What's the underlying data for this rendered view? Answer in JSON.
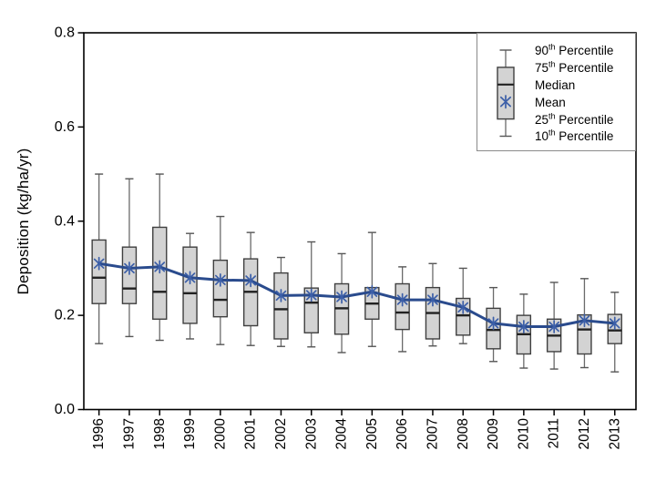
{
  "figure": {
    "background": "#ffffff",
    "y_axis_title": "Deposition (kg/ha/yr)"
  },
  "legend": {
    "items": [
      {
        "num": "90",
        "sup": "th",
        "rest": " Percentile"
      },
      {
        "num": "75",
        "sup": "th",
        "rest": " Percentile"
      },
      {
        "num": "",
        "sup": "",
        "rest": "Median"
      },
      {
        "num": "",
        "sup": "",
        "rest": "Mean"
      },
      {
        "num": "25",
        "sup": "th",
        "rest": " Percentile"
      },
      {
        "num": "10",
        "sup": "th",
        "rest": " Percentile"
      }
    ]
  },
  "chart_data": {
    "type": "boxplot",
    "title": "",
    "xlabel": "",
    "ylabel": "Deposition (kg/ha/yr)",
    "ylim": [
      0,
      0.8
    ],
    "yticks": [
      0.0,
      0.2,
      0.4,
      0.6,
      0.8
    ],
    "ytick_labels": [
      "0.0",
      "0.2",
      "0.4",
      "0.6",
      "0.8"
    ],
    "grid": false,
    "legend_position": "top-right",
    "legend": [
      "90th Percentile",
      "75th Percentile",
      "Median",
      "Mean",
      "25th Percentile",
      "10th Percentile"
    ],
    "categories": [
      "1996",
      "1997",
      "1998",
      "1999",
      "2000",
      "2001",
      "2002",
      "2003",
      "2004",
      "2005",
      "2006",
      "2007",
      "2008",
      "2009",
      "2010",
      "2011",
      "2012",
      "2013"
    ],
    "series": [
      {
        "year": "1996",
        "p10": 0.14,
        "p25": 0.225,
        "median": 0.28,
        "mean": 0.31,
        "p75": 0.36,
        "p90": 0.5
      },
      {
        "year": "1997",
        "p10": 0.155,
        "p25": 0.225,
        "median": 0.257,
        "mean": 0.3,
        "p75": 0.345,
        "p90": 0.49
      },
      {
        "year": "1998",
        "p10": 0.147,
        "p25": 0.192,
        "median": 0.25,
        "mean": 0.303,
        "p75": 0.387,
        "p90": 0.5
      },
      {
        "year": "1999",
        "p10": 0.15,
        "p25": 0.183,
        "median": 0.247,
        "mean": 0.28,
        "p75": 0.345,
        "p90": 0.374
      },
      {
        "year": "2000",
        "p10": 0.138,
        "p25": 0.197,
        "median": 0.233,
        "mean": 0.275,
        "p75": 0.317,
        "p90": 0.41
      },
      {
        "year": "2001",
        "p10": 0.136,
        "p25": 0.178,
        "median": 0.25,
        "mean": 0.274,
        "p75": 0.32,
        "p90": 0.376
      },
      {
        "year": "2002",
        "p10": 0.134,
        "p25": 0.15,
        "median": 0.213,
        "mean": 0.242,
        "p75": 0.29,
        "p90": 0.323
      },
      {
        "year": "2003",
        "p10": 0.133,
        "p25": 0.163,
        "median": 0.227,
        "mean": 0.243,
        "p75": 0.258,
        "p90": 0.356
      },
      {
        "year": "2004",
        "p10": 0.121,
        "p25": 0.16,
        "median": 0.215,
        "mean": 0.239,
        "p75": 0.267,
        "p90": 0.331
      },
      {
        "year": "2005",
        "p10": 0.134,
        "p25": 0.192,
        "median": 0.225,
        "mean": 0.25,
        "p75": 0.259,
        "p90": 0.376
      },
      {
        "year": "2006",
        "p10": 0.123,
        "p25": 0.17,
        "median": 0.206,
        "mean": 0.233,
        "p75": 0.267,
        "p90": 0.303
      },
      {
        "year": "2007",
        "p10": 0.135,
        "p25": 0.15,
        "median": 0.205,
        "mean": 0.233,
        "p75": 0.259,
        "p90": 0.31
      },
      {
        "year": "2008",
        "p10": 0.14,
        "p25": 0.158,
        "median": 0.2,
        "mean": 0.217,
        "p75": 0.236,
        "p90": 0.3
      },
      {
        "year": "2009",
        "p10": 0.102,
        "p25": 0.129,
        "median": 0.169,
        "mean": 0.183,
        "p75": 0.215,
        "p90": 0.259
      },
      {
        "year": "2010",
        "p10": 0.088,
        "p25": 0.118,
        "median": 0.16,
        "mean": 0.176,
        "p75": 0.2,
        "p90": 0.245
      },
      {
        "year": "2011",
        "p10": 0.086,
        "p25": 0.123,
        "median": 0.157,
        "mean": 0.176,
        "p75": 0.192,
        "p90": 0.27
      },
      {
        "year": "2012",
        "p10": 0.089,
        "p25": 0.118,
        "median": 0.17,
        "mean": 0.189,
        "p75": 0.201,
        "p90": 0.278
      },
      {
        "year": "2013",
        "p10": 0.08,
        "p25": 0.14,
        "median": 0.168,
        "mean": 0.183,
        "p75": 0.202,
        "p90": 0.249
      }
    ],
    "colors": {
      "box_fill": "#d3d3d3",
      "box_border": "#3f3f3f",
      "median": "#222222",
      "whisker": "#6a6a6a",
      "mean_line": "#2a4b8d",
      "mean_marker": "#3c5fa8",
      "axis": "#000000",
      "legend_border": "#8a8a8a"
    }
  }
}
